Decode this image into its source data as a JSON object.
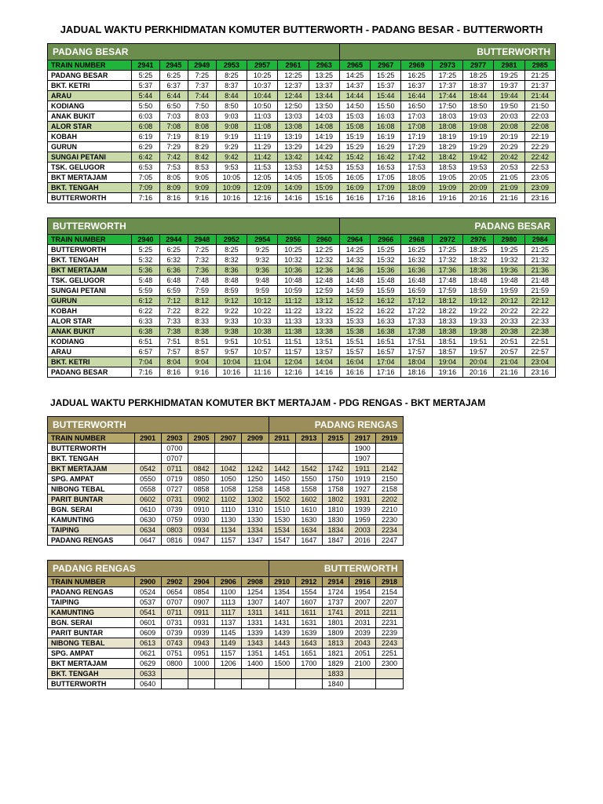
{
  "title1": "JADUAL WAKTU PERKHIDMATAN KOMUTER BUTTERWORTH - PADANG BESAR - BUTTERWORTH",
  "title2": "JADUAL WAKTU PERKHIDMATAN KOMUTER BKT MERTAJAM - PDG RENGAS - BKT MERTAJAM",
  "t1": {
    "from": "PADANG BESAR",
    "to": "BUTTERWORTH",
    "tn": "TRAIN NUMBER",
    "nums": [
      "2941",
      "2945",
      "2949",
      "2953",
      "2957",
      "2961",
      "2963",
      "2965",
      "2967",
      "2969",
      "2973",
      "2977",
      "2981",
      "2985"
    ],
    "rows": [
      {
        "s": "PADANG BESAR",
        "v": [
          "5:25",
          "6:25",
          "7:25",
          "8:25",
          "10:25",
          "12:25",
          "13:25",
          "14:25",
          "15:25",
          "16:25",
          "17:25",
          "18:25",
          "19:25",
          "21:25"
        ]
      },
      {
        "s": "BKT. KETRI",
        "v": [
          "5:37",
          "6:37",
          "7:37",
          "8:37",
          "10:37",
          "12:37",
          "13:37",
          "14:37",
          "15:37",
          "16:37",
          "17:37",
          "18:37",
          "19:37",
          "21:37"
        ]
      },
      {
        "s": "ARAU",
        "v": [
          "5:44",
          "6:44",
          "7:44",
          "8:44",
          "10:44",
          "12:44",
          "13:44",
          "14:44",
          "15:44",
          "16:44",
          "17:44",
          "18:44",
          "19:44",
          "21:44"
        ],
        "alt": true
      },
      {
        "s": "KODIANG",
        "v": [
          "5:50",
          "6:50",
          "7:50",
          "8:50",
          "10:50",
          "12:50",
          "13:50",
          "14:50",
          "15:50",
          "16:50",
          "17:50",
          "18:50",
          "19:50",
          "21:50"
        ]
      },
      {
        "s": "ANAK BUKIT",
        "v": [
          "6:03",
          "7:03",
          "8:03",
          "9:03",
          "11:03",
          "13:03",
          "14:03",
          "15:03",
          "16:03",
          "17:03",
          "18:03",
          "19:03",
          "20:03",
          "22:03"
        ]
      },
      {
        "s": "ALOR STAR",
        "v": [
          "6:08",
          "7:08",
          "8:08",
          "9:08",
          "11:08",
          "13:08",
          "14:08",
          "15:08",
          "16:08",
          "17:08",
          "18:08",
          "19:08",
          "20:08",
          "22:08"
        ],
        "alt": true
      },
      {
        "s": "KOBAH",
        "v": [
          "6:19",
          "7:19",
          "8:19",
          "9:19",
          "11:19",
          "13:19",
          "14:19",
          "15:19",
          "16:19",
          "17:19",
          "18:19",
          "19:19",
          "20:19",
          "22:19"
        ]
      },
      {
        "s": "GURUN",
        "v": [
          "6:29",
          "7:29",
          "8:29",
          "9:29",
          "11:29",
          "13:29",
          "14:29",
          "15:29",
          "16:29",
          "17:29",
          "18:29",
          "19:29",
          "20:29",
          "22:29"
        ]
      },
      {
        "s": "SUNGAI PETANI",
        "v": [
          "6:42",
          "7:42",
          "8:42",
          "9:42",
          "11:42",
          "13:42",
          "14:42",
          "15:42",
          "16:42",
          "17:42",
          "18:42",
          "19:42",
          "20:42",
          "22:42"
        ],
        "alt": true
      },
      {
        "s": "TSK. GELUGOR",
        "v": [
          "6:53",
          "7:53",
          "8:53",
          "9:53",
          "11:53",
          "13:53",
          "14:53",
          "15:53",
          "16:53",
          "17:53",
          "18:53",
          "19:53",
          "20:53",
          "22:53"
        ]
      },
      {
        "s": "BKT MERTAJAM",
        "v": [
          "7:05",
          "8:05",
          "9:05",
          "10:05",
          "12:05",
          "14:05",
          "15:05",
          "16:05",
          "17:05",
          "18:05",
          "19:05",
          "20:05",
          "21:05",
          "23:05"
        ]
      },
      {
        "s": "BKT. TENGAH",
        "v": [
          "7:09",
          "8:09",
          "9:09",
          "10:09",
          "12:09",
          "14:09",
          "15:09",
          "16:09",
          "17:09",
          "18:09",
          "19:09",
          "20:09",
          "21:09",
          "23:09"
        ],
        "alt": true
      },
      {
        "s": "BUTTERWORTH",
        "v": [
          "7:16",
          "8:16",
          "9:16",
          "10:16",
          "12:16",
          "14:16",
          "15:16",
          "16:16",
          "17:16",
          "18:16",
          "19:16",
          "20:16",
          "21:16",
          "23:16"
        ]
      }
    ]
  },
  "t2": {
    "from": "BUTTERWORTH",
    "to": "PADANG BESAR",
    "tn": "TRAIN NUMBER",
    "nums": [
      "2940",
      "2944",
      "2948",
      "2952",
      "2954",
      "2956",
      "2960",
      "2964",
      "2966",
      "2968",
      "2972",
      "2976",
      "2980",
      "2984"
    ],
    "rows": [
      {
        "s": "BUTTERWORTH",
        "v": [
          "5:25",
          "6:25",
          "7:25",
          "8:25",
          "9:25",
          "10:25",
          "12:25",
          "14:25",
          "15:25",
          "16:25",
          "17:25",
          "18:25",
          "19:25",
          "21:25"
        ]
      },
      {
        "s": "BKT. TENGAH",
        "v": [
          "5:32",
          "6:32",
          "7:32",
          "8:32",
          "9:32",
          "10:32",
          "12:32",
          "14:32",
          "15:32",
          "16:32",
          "17:32",
          "18:32",
          "19:32",
          "21:32"
        ]
      },
      {
        "s": "BKT MERTAJAM",
        "v": [
          "5:36",
          "6:36",
          "7:36",
          "8:36",
          "9:36",
          "10:36",
          "12:36",
          "14:36",
          "15:36",
          "16:36",
          "17:36",
          "18:36",
          "19:36",
          "21:36"
        ],
        "alt": true
      },
      {
        "s": "TSK. GELUGOR",
        "v": [
          "5:48",
          "6:48",
          "7:48",
          "8:48",
          "9:48",
          "10:48",
          "12:48",
          "14:48",
          "15:48",
          "16:48",
          "17:48",
          "18:48",
          "19:48",
          "21:48"
        ]
      },
      {
        "s": "SUNGAI PETANI",
        "v": [
          "5:59",
          "6:59",
          "7:59",
          "8:59",
          "9:59",
          "10:59",
          "12:59",
          "14:59",
          "15:59",
          "16:59",
          "17:59",
          "18:59",
          "19:59",
          "21:59"
        ]
      },
      {
        "s": "GURUN",
        "v": [
          "6:12",
          "7:12",
          "8:12",
          "9:12",
          "10:12",
          "11:12",
          "13:12",
          "15:12",
          "16:12",
          "17:12",
          "18:12",
          "19:12",
          "20:12",
          "22:12"
        ],
        "alt": true
      },
      {
        "s": "KOBAH",
        "v": [
          "6:22",
          "7:22",
          "8:22",
          "9:22",
          "10:22",
          "11:22",
          "13:22",
          "15:22",
          "16:22",
          "17:22",
          "18:22",
          "19:22",
          "20:22",
          "22:22"
        ]
      },
      {
        "s": "ALOR STAR",
        "v": [
          "6:33",
          "7:33",
          "8:33",
          "9:33",
          "10:33",
          "11:33",
          "13:33",
          "15:33",
          "16:33",
          "17:33",
          "18:33",
          "19:33",
          "20:33",
          "22:33"
        ]
      },
      {
        "s": "ANAK BUKIT",
        "v": [
          "6:38",
          "7:38",
          "8:38",
          "9:38",
          "10:38",
          "11:38",
          "13:38",
          "15:38",
          "16:38",
          "17:38",
          "18:38",
          "19:38",
          "20:38",
          "22:38"
        ],
        "alt": true
      },
      {
        "s": "KODIANG",
        "v": [
          "6:51",
          "7:51",
          "8:51",
          "9:51",
          "10:51",
          "11:51",
          "13:51",
          "15:51",
          "16:51",
          "17:51",
          "18:51",
          "19:51",
          "20:51",
          "22:51"
        ]
      },
      {
        "s": "ARAU",
        "v": [
          "6:57",
          "7:57",
          "8:57",
          "9:57",
          "10:57",
          "11:57",
          "13:57",
          "15:57",
          "16:57",
          "17:57",
          "18:57",
          "19:57",
          "20:57",
          "22:57"
        ]
      },
      {
        "s": "BKT. KETRI",
        "v": [
          "7:04",
          "8:04",
          "9:04",
          "10:04",
          "11:04",
          "12:04",
          "14:04",
          "16:04",
          "17:04",
          "18:04",
          "19:04",
          "20:04",
          "21:04",
          "23:04"
        ],
        "alt": true
      },
      {
        "s": "PADANG BESAR",
        "v": [
          "7:16",
          "8:16",
          "9:16",
          "10:16",
          "11:16",
          "12:16",
          "14:16",
          "16:16",
          "17:16",
          "18:16",
          "19:16",
          "20:16",
          "21:16",
          "23:16"
        ]
      }
    ]
  },
  "t3": {
    "from": "BUTTERWORTH",
    "to": "PADANG RENGAS",
    "tn": "TRAIN NUMBER",
    "nums": [
      "2901",
      "2903",
      "2905",
      "2907",
      "2909",
      "2911",
      "2913",
      "2915",
      "2917",
      "2919"
    ],
    "rows": [
      {
        "s": "BUTTERWORTH",
        "v": [
          "",
          "0700",
          "",
          "",
          "",
          "",
          "",
          "",
          "1900",
          ""
        ]
      },
      {
        "s": "BKT. TENGAH",
        "v": [
          "",
          "0707",
          "",
          "",
          "",
          "",
          "",
          "",
          "1907",
          ""
        ]
      },
      {
        "s": "BKT MERTAJAM",
        "v": [
          "0542",
          "0711",
          "0842",
          "1042",
          "1242",
          "1442",
          "1542",
          "1742",
          "1911",
          "2142"
        ],
        "alt": true
      },
      {
        "s": "SPG. AMPAT",
        "v": [
          "0550",
          "0719",
          "0850",
          "1050",
          "1250",
          "1450",
          "1550",
          "1750",
          "1919",
          "2150"
        ]
      },
      {
        "s": "NIBONG TEBAL",
        "v": [
          "0558",
          "0727",
          "0858",
          "1058",
          "1258",
          "1458",
          "1558",
          "1758",
          "1927",
          "2158"
        ]
      },
      {
        "s": "PARIT BUNTAR",
        "v": [
          "0602",
          "0731",
          "0902",
          "1102",
          "1302",
          "1502",
          "1602",
          "1802",
          "1931",
          "2202"
        ],
        "alt": true
      },
      {
        "s": "BGN. SERAI",
        "v": [
          "0610",
          "0739",
          "0910",
          "1110",
          "1310",
          "1510",
          "1610",
          "1810",
          "1939",
          "2210"
        ]
      },
      {
        "s": "KAMUNTING",
        "v": [
          "0630",
          "0759",
          "0930",
          "1130",
          "1330",
          "1530",
          "1630",
          "1830",
          "1959",
          "2230"
        ]
      },
      {
        "s": "TAIPING",
        "v": [
          "0634",
          "0803",
          "0934",
          "1134",
          "1334",
          "1534",
          "1634",
          "1834",
          "2003",
          "2234"
        ],
        "alt": true
      },
      {
        "s": "PADANG RENGAS",
        "v": [
          "0647",
          "0816",
          "0947",
          "1157",
          "1347",
          "1547",
          "1647",
          "1847",
          "2016",
          "2247"
        ]
      }
    ]
  },
  "t4": {
    "from": "PADANG RENGAS",
    "to": "BUTTERWORTH",
    "tn": "TRAIN NUMBER",
    "nums": [
      "2900",
      "2902",
      "2904",
      "2906",
      "2908",
      "2910",
      "2912",
      "2914",
      "2916",
      "2918"
    ],
    "rows": [
      {
        "s": "PADANG RENGAS",
        "v": [
          "0524",
          "0654",
          "0854",
          "1100",
          "1254",
          "1354",
          "1554",
          "1724",
          "1954",
          "2154"
        ]
      },
      {
        "s": "TAIPING",
        "v": [
          "0537",
          "0707",
          "0907",
          "1113",
          "1307",
          "1407",
          "1607",
          "1737",
          "2007",
          "2207"
        ]
      },
      {
        "s": "KAMUNTING",
        "v": [
          "0541",
          "0711",
          "0911",
          "1117",
          "1311",
          "1411",
          "1611",
          "1741",
          "2011",
          "2211"
        ],
        "alt": true
      },
      {
        "s": "BGN. SERAI",
        "v": [
          "0601",
          "0731",
          "0931",
          "1137",
          "1331",
          "1431",
          "1631",
          "1801",
          "2031",
          "2231"
        ]
      },
      {
        "s": "PARIT BUNTAR",
        "v": [
          "0609",
          "0739",
          "0939",
          "1145",
          "1339",
          "1439",
          "1639",
          "1809",
          "2039",
          "2239"
        ]
      },
      {
        "s": "NIBONG TEBAL",
        "v": [
          "0613",
          "0743",
          "0943",
          "1149",
          "1343",
          "1443",
          "1643",
          "1813",
          "2043",
          "2243"
        ],
        "alt": true
      },
      {
        "s": "SPG. AMPAT",
        "v": [
          "0621",
          "0751",
          "0951",
          "1157",
          "1351",
          "1451",
          "1651",
          "1821",
          "2051",
          "2251"
        ]
      },
      {
        "s": "BKT MERTAJAM",
        "v": [
          "0629",
          "0800",
          "1000",
          "1206",
          "1400",
          "1500",
          "1700",
          "1829",
          "2100",
          "2300"
        ]
      },
      {
        "s": "BKT. TENGAH",
        "v": [
          "0633",
          "",
          "",
          "",
          "",
          "",
          "",
          "1833",
          "",
          ""
        ],
        "alt": true
      },
      {
        "s": "BUTTERWORTH",
        "v": [
          "0640",
          "",
          "",
          "",
          "",
          "",
          "",
          "1840",
          "",
          ""
        ]
      }
    ]
  }
}
